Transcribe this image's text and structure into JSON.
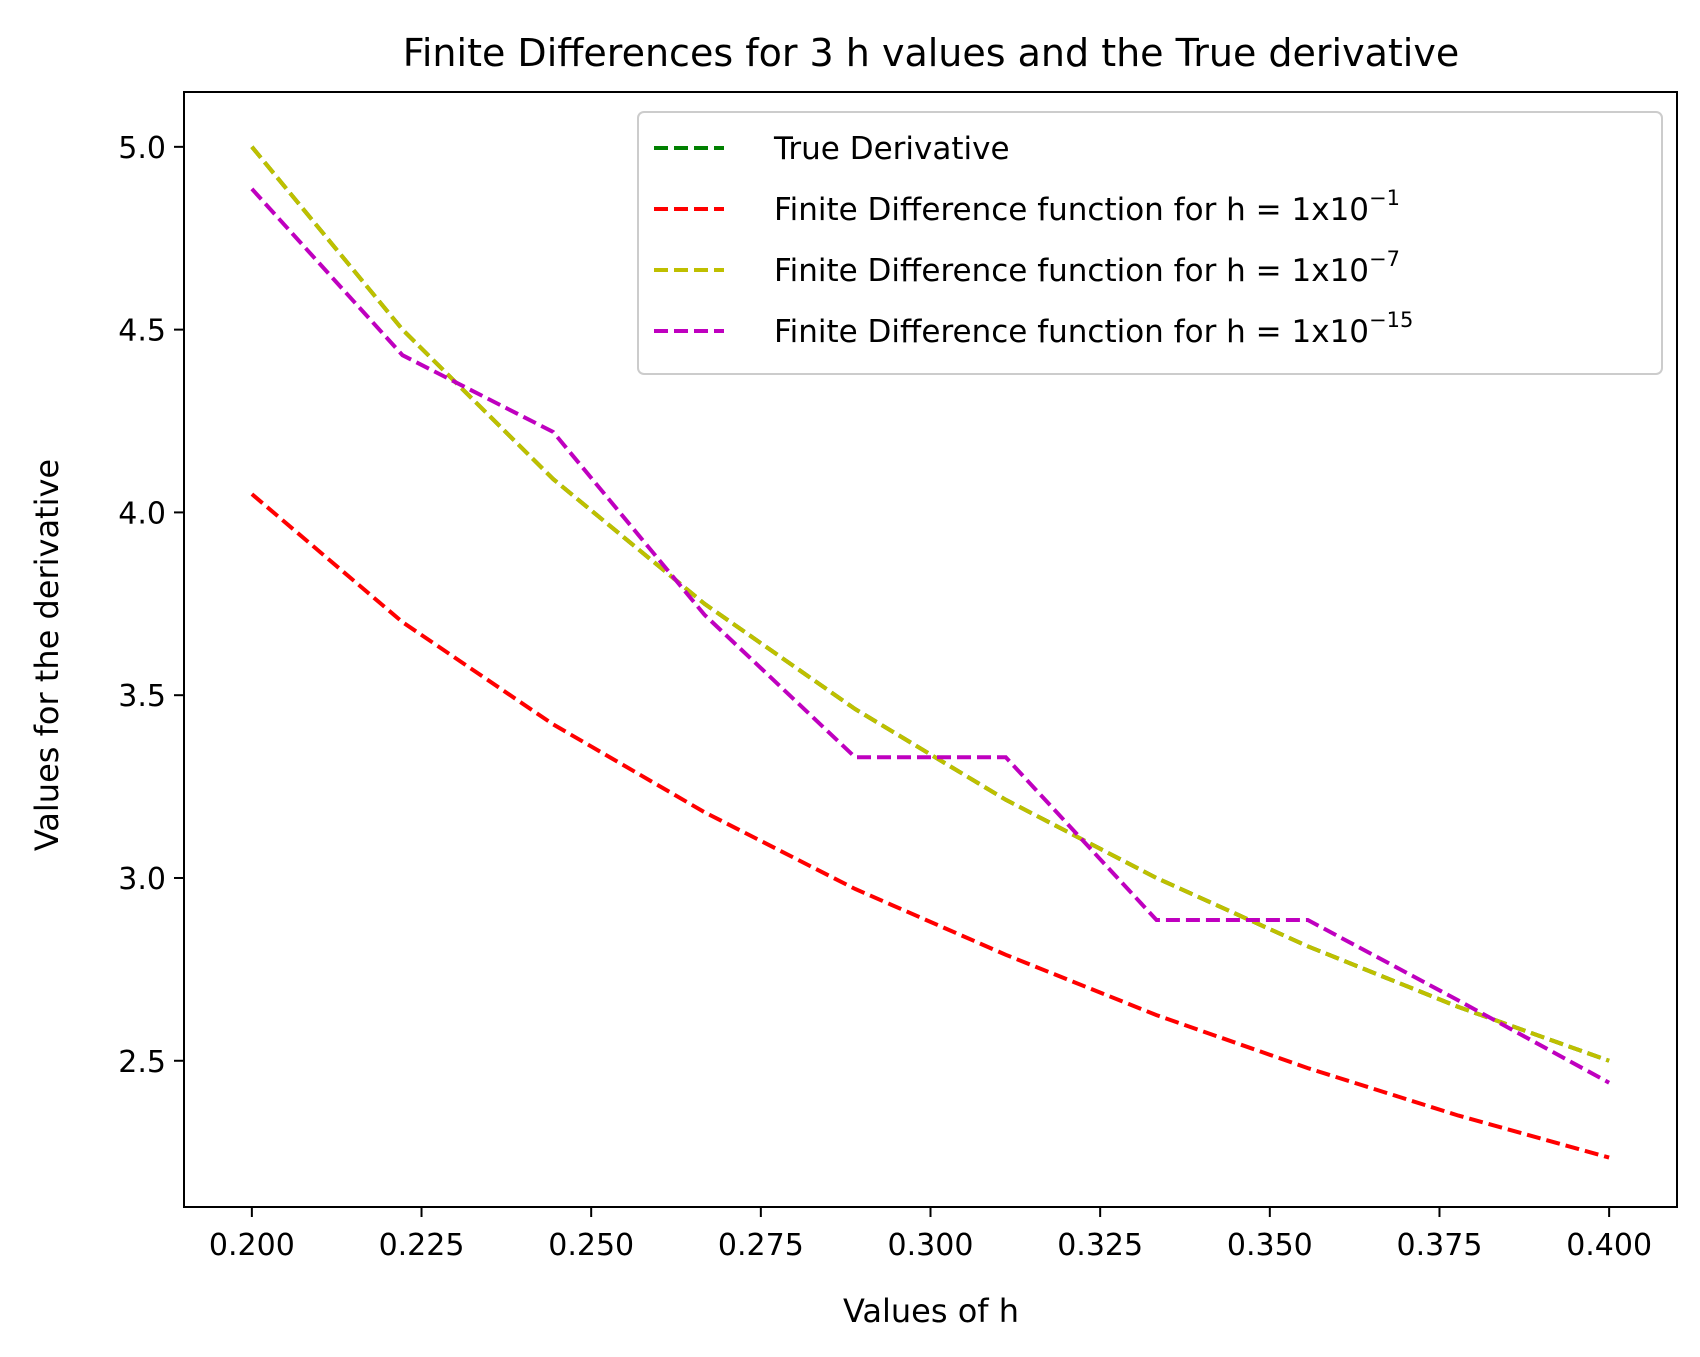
{
  "chart_data": {
    "type": "line",
    "title": "Finite Differences for 3 h values and the True derivative",
    "xlabel": "Values of h",
    "ylabel": "Values for the derivative",
    "xlim": [
      0.19,
      0.41
    ],
    "ylim": [
      2.1,
      5.15
    ],
    "xticks": [
      "0.200",
      "0.225",
      "0.250",
      "0.275",
      "0.300",
      "0.325",
      "0.350",
      "0.375",
      "0.400"
    ],
    "yticks": [
      "2.5",
      "3.0",
      "3.5",
      "4.0",
      "4.5",
      "5.0"
    ],
    "grid": false,
    "legend_position": "upper-right",
    "x": [
      0.2,
      0.2222,
      0.2444,
      0.2667,
      0.2889,
      0.3111,
      0.3333,
      0.3556,
      0.3778,
      0.4
    ],
    "series": [
      {
        "name": "True Derivative",
        "color": "#008000",
        "style": "dashed",
        "values": [
          5.0,
          4.5,
          4.091,
          3.75,
          3.462,
          3.214,
          3.0,
          2.813,
          2.647,
          2.5
        ]
      },
      {
        "name": "Finite Difference function for h = 1x10",
        "exponent": "−1",
        "color": "#ff0000",
        "style": "dashed",
        "values": [
          4.05,
          3.7,
          3.42,
          3.18,
          2.97,
          2.79,
          2.625,
          2.48,
          2.35,
          2.235
        ]
      },
      {
        "name": "Finite Difference function for h = 1x10",
        "exponent": "−7",
        "color": "#bfbf00",
        "style": "dashed",
        "values": [
          5.0,
          4.5,
          4.091,
          3.75,
          3.462,
          3.214,
          3.0,
          2.813,
          2.647,
          2.5
        ]
      },
      {
        "name": "Finite Difference function for h = 1x10",
        "exponent": "−15",
        "color": "#bf00bf",
        "style": "dashed",
        "values": [
          4.885,
          4.43,
          4.22,
          3.72,
          3.33,
          3.33,
          2.885,
          2.885,
          2.665,
          2.44
        ]
      }
    ]
  }
}
